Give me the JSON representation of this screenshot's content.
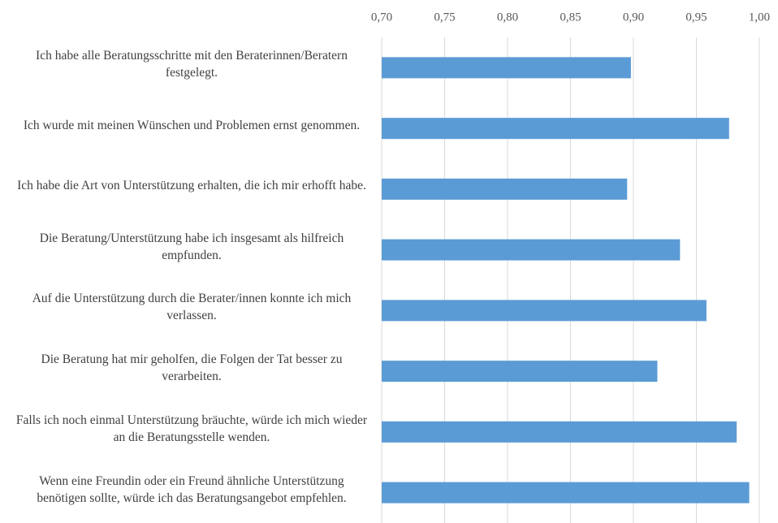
{
  "chart_data": {
    "type": "barh",
    "categories": [
      "Ich habe alle Beratungsschritte mit den Beraterinnen/Beratern festgelegt.",
      "Ich wurde mit meinen Wünschen und Problemen ernst genommen.",
      "Ich habe die Art von Unterstützung erhalten, die ich mir erhofft habe.",
      "Die Beratung/Unterstützung habe ich insgesamt als hilfreich empfunden.",
      "Auf die Unterstützung durch die Berater/innen konnte ich mich verlassen.",
      "Die Beratung hat mir geholfen, die Folgen der Tat besser zu verarbeiten.",
      "Falls ich noch einmal Unterstützung bräuchte, würde ich mich wieder an die Beratungsstelle wenden.",
      "Wenn eine Freundin oder ein Freund ähnliche Unterstützung benötigen sollte, würde ich das Beratungsangebot empfehlen."
    ],
    "values": [
      0.898,
      0.976,
      0.895,
      0.937,
      0.958,
      0.919,
      0.982,
      0.992
    ],
    "color": "#5b9bd5",
    "xlim": [
      0.7,
      1.0
    ],
    "xticks": [
      {
        "value": 0.7,
        "label": "0,70"
      },
      {
        "value": 0.75,
        "label": "0,75"
      },
      {
        "value": 0.8,
        "label": "0,80"
      },
      {
        "value": 0.85,
        "label": "0,85"
      },
      {
        "value": 0.9,
        "label": "0,90"
      },
      {
        "value": 0.95,
        "label": "0,95"
      },
      {
        "value": 1.0,
        "label": "1,00"
      }
    ],
    "grid": true
  }
}
